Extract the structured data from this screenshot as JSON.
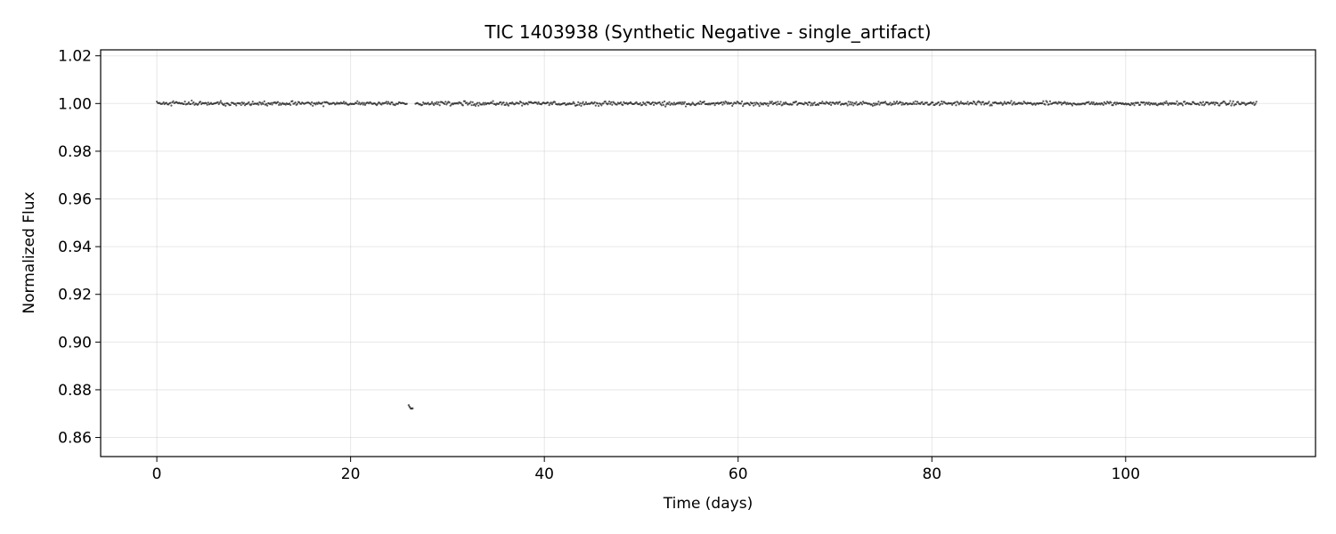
{
  "chart_data": {
    "type": "scatter",
    "title": "TIC 1403938 (Synthetic Negative - single_artifact)",
    "xlabel": "Time (days)",
    "ylabel": "Normalized Flux",
    "xlim": [
      -5.8,
      119.6
    ],
    "ylim": [
      0.852,
      1.0225
    ],
    "xticks": [
      0,
      20,
      40,
      60,
      80,
      100
    ],
    "xtick_labels": [
      "0",
      "20",
      "40",
      "60",
      "80",
      "100"
    ],
    "yticks": [
      0.86,
      0.88,
      0.9,
      0.92,
      0.94,
      0.96,
      0.98,
      1.0,
      1.02
    ],
    "ytick_labels": [
      "0.86",
      "0.88",
      "0.90",
      "0.92",
      "0.94",
      "0.96",
      "0.98",
      "1.00",
      "1.02"
    ],
    "grid": true,
    "marker_color": "#222222",
    "baseline_series": {
      "x_start": 0.0,
      "x_end": 113.5,
      "cadence_days": 0.1,
      "gap_x": [
        25.9,
        26.6
      ],
      "flux_level": 1.0,
      "flux_scatter": 0.0006
    },
    "artifact_points": [
      {
        "x": 26.0,
        "y": 0.8735
      },
      {
        "x": 26.1,
        "y": 0.8728
      },
      {
        "x": 26.2,
        "y": 0.8722
      },
      {
        "x": 26.3,
        "y": 0.8721
      },
      {
        "x": 26.4,
        "y": 0.8722
      }
    ]
  }
}
